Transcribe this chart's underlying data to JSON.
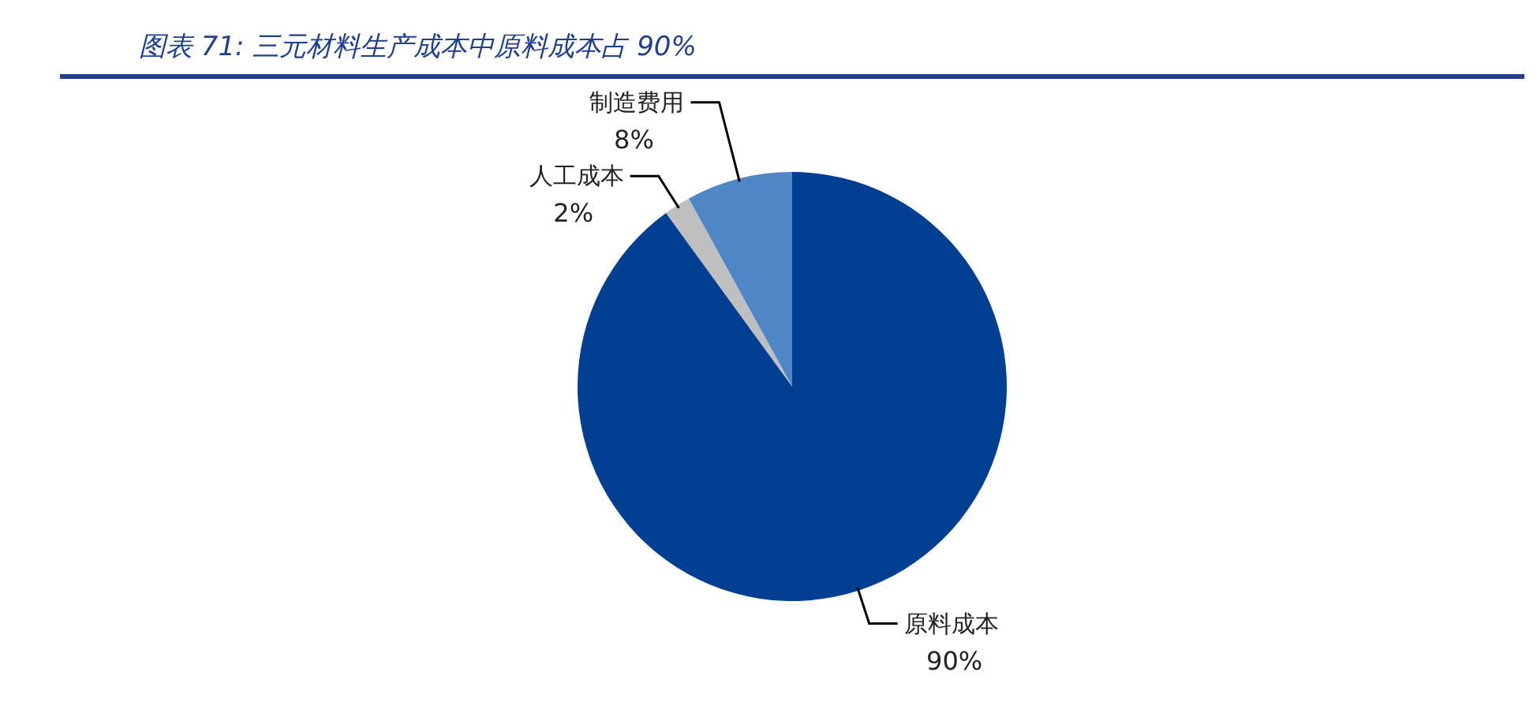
{
  "chart_data": {
    "type": "pie",
    "title": "图表 71: 三元材料生产成本中原料成本占 90%",
    "categories": [
      "原料成本",
      "人工成本",
      "制造费用"
    ],
    "values": [
      90,
      2,
      8
    ],
    "value_labels": [
      "90%",
      "2%",
      "8%"
    ],
    "colors": [
      "#003f91",
      "#bfbfbf",
      "#4f86c6"
    ]
  }
}
